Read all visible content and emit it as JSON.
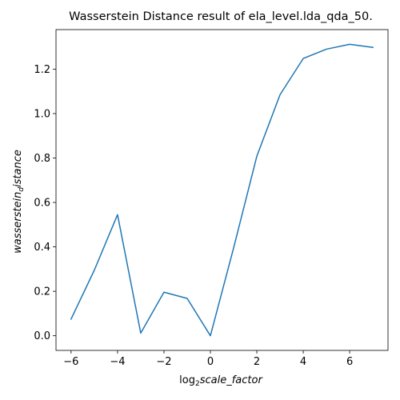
{
  "chart_data": {
    "type": "line",
    "title": "Wasserstein Distance result of ela_level.lda_qda_50.",
    "xlabel": {
      "base": "log",
      "sub": "2",
      "rest": "scale_factor"
    },
    "ylabel": {
      "base": "wasserstein",
      "sub": "d",
      "rest": "istance"
    },
    "xlim": [
      -6.65,
      7.65
    ],
    "ylim": [
      -0.066,
      1.378
    ],
    "xticks": [
      -6,
      -4,
      -2,
      0,
      2,
      4,
      6
    ],
    "xtick_labels": [
      "−6",
      "−4",
      "−2",
      "0",
      "2",
      "4",
      "6"
    ],
    "yticks": [
      0.0,
      0.2,
      0.4,
      0.6,
      0.8,
      1.0,
      1.2
    ],
    "ytick_labels": [
      "0.0",
      "0.2",
      "0.4",
      "0.6",
      "0.8",
      "1.0",
      "1.2"
    ],
    "grid": false,
    "series": [
      {
        "color": "#1f77b4",
        "x": [
          -6,
          -5,
          -4,
          -3,
          -2,
          -1,
          0,
          1,
          2,
          3,
          4,
          5,
          6,
          7
        ],
        "y": [
          0.075,
          0.295,
          0.545,
          0.012,
          0.196,
          0.168,
          0.0,
          0.395,
          0.808,
          1.085,
          1.248,
          1.29,
          1.312,
          1.298
        ]
      }
    ]
  }
}
